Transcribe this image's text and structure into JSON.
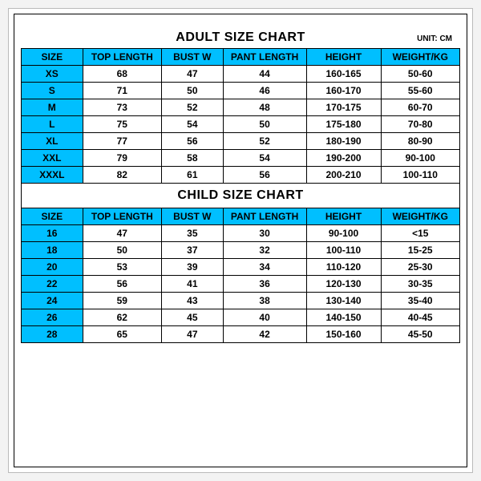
{
  "unit_label": "UNIT: CM",
  "header_bg": "#00bfff",
  "columns": [
    "SIZE",
    "TOP LENGTH",
    "BUST W",
    "PANT LENGTH",
    "HEIGHT",
    "WEIGHT/KG"
  ],
  "adult": {
    "title": "ADULT SIZE CHART",
    "rows": [
      [
        "XS",
        "68",
        "47",
        "44",
        "160-165",
        "50-60"
      ],
      [
        "S",
        "71",
        "50",
        "46",
        "160-170",
        "55-60"
      ],
      [
        "M",
        "73",
        "52",
        "48",
        "170-175",
        "60-70"
      ],
      [
        "L",
        "75",
        "54",
        "50",
        "175-180",
        "70-80"
      ],
      [
        "XL",
        "77",
        "56",
        "52",
        "180-190",
        "80-90"
      ],
      [
        "XXL",
        "79",
        "58",
        "54",
        "190-200",
        "90-100"
      ],
      [
        "XXXL",
        "82",
        "61",
        "56",
        "200-210",
        "100-110"
      ]
    ]
  },
  "child": {
    "title": "CHILD SIZE CHART",
    "rows": [
      [
        "16",
        "47",
        "35",
        "30",
        "90-100",
        "<15"
      ],
      [
        "18",
        "50",
        "37",
        "32",
        "100-110",
        "15-25"
      ],
      [
        "20",
        "53",
        "39",
        "34",
        "110-120",
        "25-30"
      ],
      [
        "22",
        "56",
        "41",
        "36",
        "120-130",
        "30-35"
      ],
      [
        "24",
        "59",
        "43",
        "38",
        "130-140",
        "35-40"
      ],
      [
        "26",
        "62",
        "45",
        "40",
        "140-150",
        "40-45"
      ],
      [
        "28",
        "65",
        "47",
        "42",
        "150-160",
        "45-50"
      ]
    ]
  }
}
